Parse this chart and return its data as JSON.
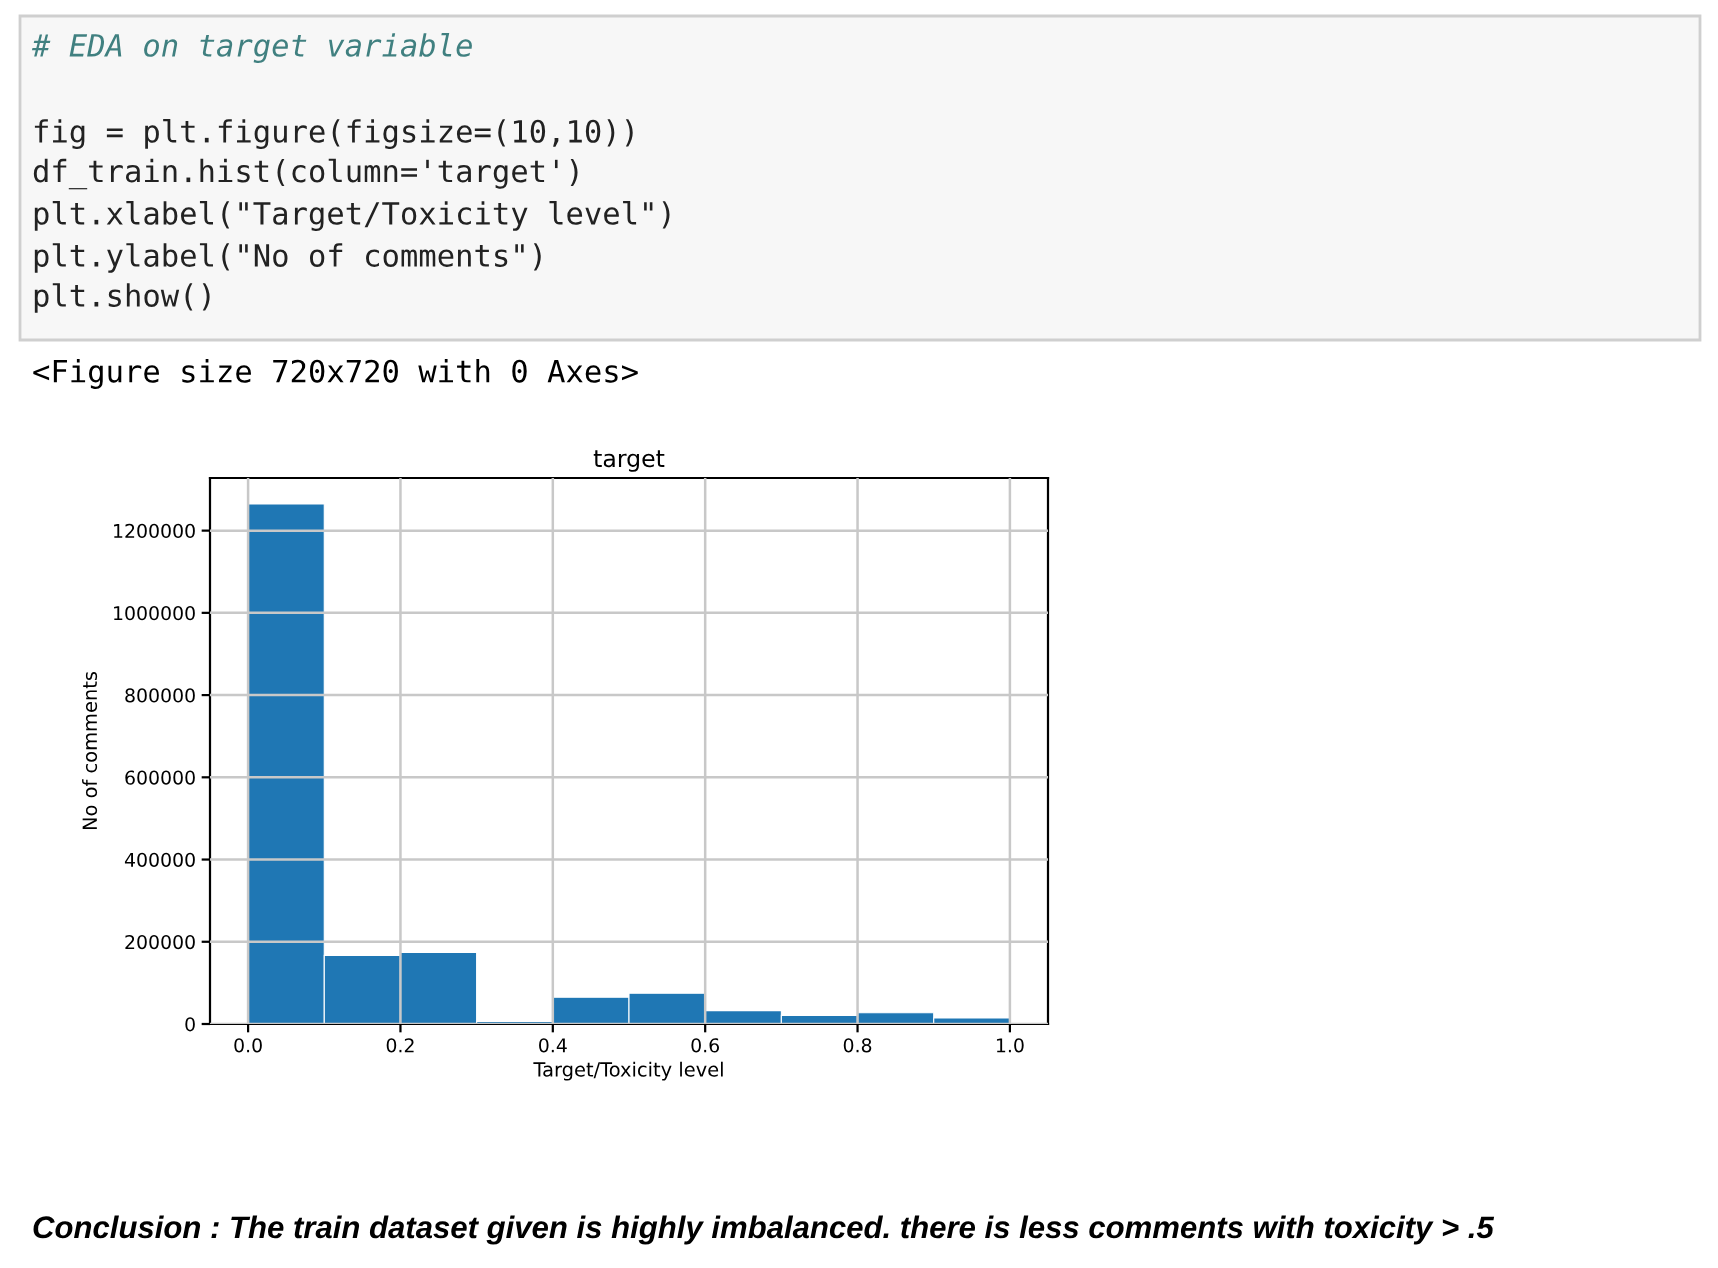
{
  "chart_data": {
    "type": "histogram",
    "title": "target",
    "xlabel": "Target/Toxicity level",
    "ylabel": "No of comments",
    "bins": [
      0.0,
      0.1,
      0.2,
      0.3,
      0.4,
      0.5,
      0.6,
      0.7,
      0.8,
      0.9,
      1.0
    ],
    "values": [
      1265000,
      167000,
      174000,
      6500,
      65000,
      75000,
      32500,
      21000,
      27500,
      14500
    ],
    "color": "#1f77b4",
    "xlim": [
      -0.05,
      1.05
    ],
    "xticks": [
      {
        "value": 0.0,
        "label": "0.0"
      },
      {
        "value": 0.2,
        "label": "0.2"
      },
      {
        "value": 0.4,
        "label": "0.4"
      },
      {
        "value": 0.6,
        "label": "0.6"
      },
      {
        "value": 0.8,
        "label": "0.8"
      },
      {
        "value": 1.0,
        "label": "1.0"
      }
    ],
    "ylim": [
      0,
      1328000
    ],
    "yticks": [
      0,
      200000,
      400000,
      600000,
      800000,
      1000000,
      1200000
    ],
    "grid": true,
    "annotations": [
      "# EDA on target variable",
      "fig = plt.figure(figsize=(10,10))",
      "df_train.hist(column='target')",
      "plt.xlabel(\"Target/Toxicity level\")",
      "plt.ylabel(\"No of comments\")",
      "plt.show()",
      "<Figure size 720x720 with 0 Axes>",
      "Conclusion : The train dataset given is highly imbalanced. there is less comments with toxicity > .5"
    ]
  }
}
